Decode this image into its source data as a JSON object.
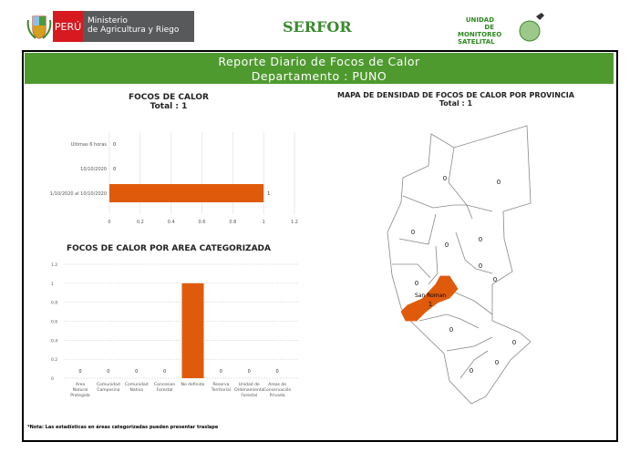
{
  "header": {
    "peru_label": "PERÚ",
    "ministry_line1": "Ministerio",
    "ministry_line2": "de Agricultura y Riego",
    "serfor": "SERFOR",
    "unidad_line1": "UNIDAD DE",
    "unidad_line2": "MONITOREO",
    "unidad_line3": "SATELITAL"
  },
  "banner": {
    "title": "Reporte Diario de Focos de Calor",
    "subtitle": "Departamento : PUNO"
  },
  "colors": {
    "accent": "#e05a0c",
    "banner": "#4f9a2f"
  },
  "chart_data": [
    {
      "type": "bar",
      "orientation": "horizontal",
      "title": "FOCOS DE CALOR",
      "subtitle": "Total : 1",
      "categories": [
        "Ultimas 6 horas",
        "10/10/2020",
        "1/10/2020 al 10/10/2020"
      ],
      "values": [
        0,
        0,
        1
      ],
      "xlim": [
        0,
        1.2
      ],
      "xticks": [
        "0",
        "0.2",
        "0.4",
        "0.6",
        "0.8",
        "1",
        "1.2"
      ],
      "grid": true
    },
    {
      "type": "bar",
      "title": "FOCOS DE CALOR POR AREA CATEGORIZADA",
      "categories": [
        "Area Natural Protegida",
        "Comunidad Campesina",
        "Comunidad Nativa",
        "Concesion Forestal",
        "No definido",
        "Reserva Territorial",
        "Unidad de Ordenamiento Forestal",
        "Areas de Conservación Privada"
      ],
      "values": [
        0,
        0,
        0,
        0,
        1,
        0,
        0,
        0
      ],
      "ylim": [
        0,
        1.2
      ],
      "yticks": [
        "0",
        "0.2",
        "0.4",
        "0.6",
        "0.8",
        "1",
        "1.2"
      ],
      "grid": true
    }
  ],
  "map": {
    "title": "MAPA DE DENSIDAD DE FOCOS DE CALOR POR PROVINCIA",
    "subtitle": "Total : 1",
    "highlight_label": "San Roman",
    "province_counts": [
      "0",
      "0",
      "0",
      "0",
      "0",
      "0",
      "0",
      "0",
      "1",
      "0",
      "0",
      "0",
      "0"
    ]
  },
  "note": "*Nota: Las estadísticas en áreas categorizadas pueden presentar traslape"
}
